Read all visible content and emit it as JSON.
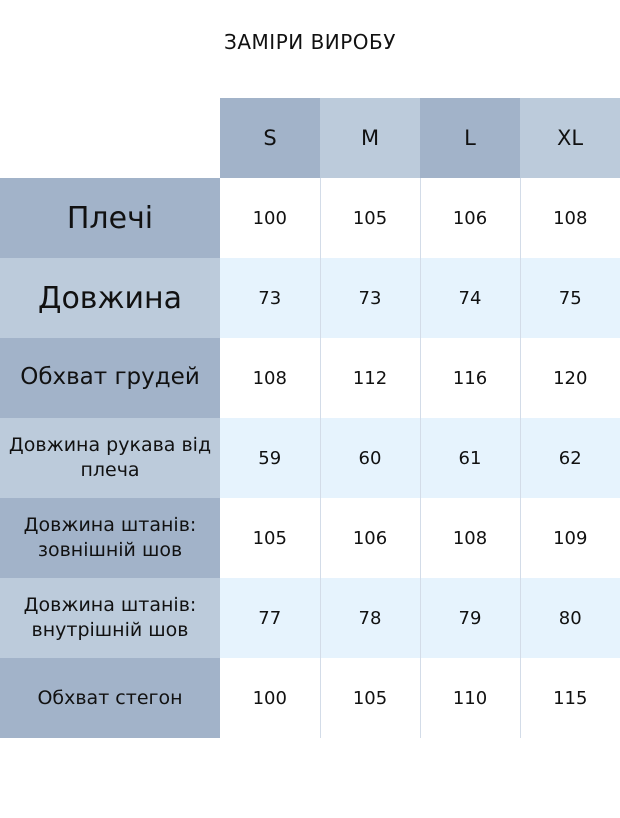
{
  "title": "ЗАМІРИ ВИРОБУ",
  "sizes": [
    "S",
    "M",
    "L",
    "XL"
  ],
  "rows": [
    {
      "label": "Плечі",
      "values": [
        "100",
        "105",
        "106",
        "108"
      ]
    },
    {
      "label": "Довжина",
      "values": [
        "73",
        "73",
        "74",
        "75"
      ]
    },
    {
      "label": "Обхват грудей",
      "values": [
        "108",
        "112",
        "116",
        "120"
      ]
    },
    {
      "label": "Довжина рукава від плеча",
      "values": [
        "59",
        "60",
        "61",
        "62"
      ]
    },
    {
      "label": "Довжина штанів: зовнішній шов",
      "values": [
        "105",
        "106",
        "108",
        "109"
      ]
    },
    {
      "label": "Довжина штанів: внутрішній шов",
      "values": [
        "77",
        "78",
        "79",
        "80"
      ]
    },
    {
      "label": "Обхват стегон",
      "values": [
        "100",
        "105",
        "110",
        "115"
      ]
    }
  ],
  "colors": {
    "header_dark": "#a2b3c9",
    "header_light": "#bccbdb",
    "row_alt": "#e6f3fd"
  }
}
